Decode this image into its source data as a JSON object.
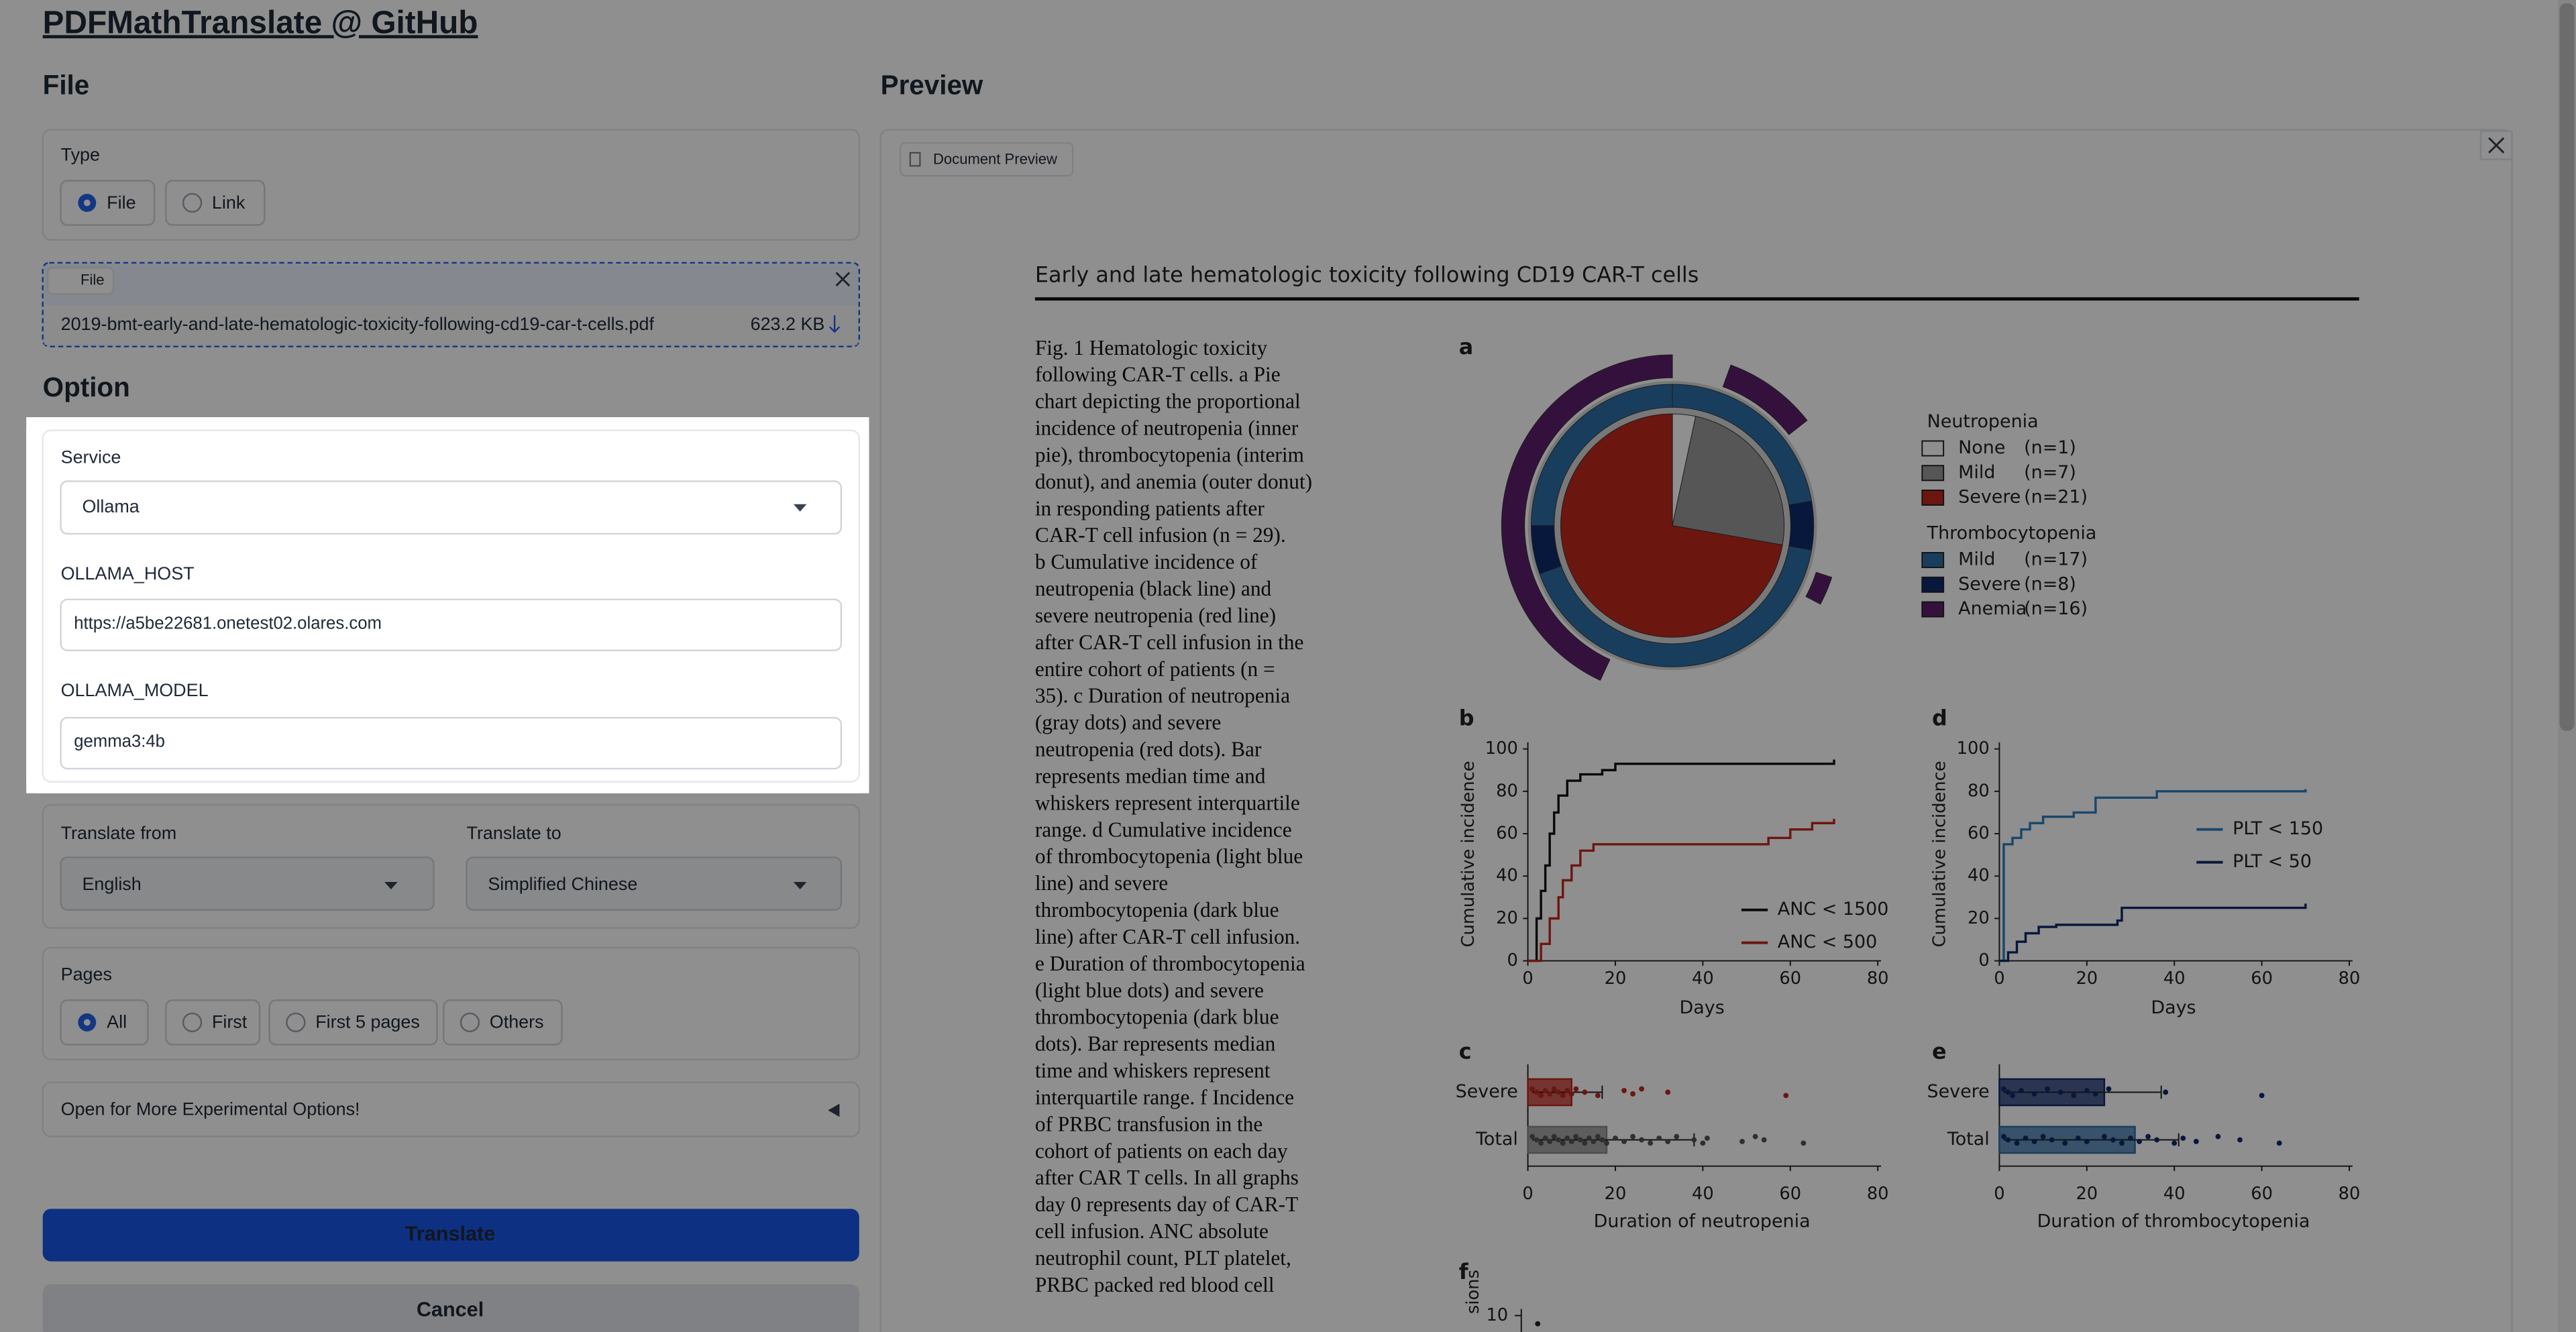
{
  "header": {
    "title": "PDFMathTranslate @ GitHub"
  },
  "file_section": {
    "heading": "File",
    "type_label": "Type",
    "type_options": [
      "File",
      "Link"
    ],
    "file_label": "File",
    "file_name": "2019-bmt-early-and-late-hematologic-toxicity-following-cd19-car-t-cells.pdf",
    "file_size": "623.2 KB"
  },
  "option_section": {
    "heading": "Option",
    "service_label": "Service",
    "service_value": "Ollama",
    "host_label": "OLLAMA_HOST",
    "host_value": "https://a5be22681.onetest02.olares.com",
    "model_label": "OLLAMA_MODEL",
    "model_value": "gemma3:4b",
    "from_label": "Translate from",
    "from_value": "English",
    "to_label": "Translate to",
    "to_value": "Simplified Chinese",
    "pages_label": "Pages",
    "pages_options": [
      "All",
      "First",
      "First 5 pages",
      "Others"
    ],
    "experimental": "Open for More Experimental Options!"
  },
  "buttons": {
    "translate": "Translate",
    "cancel": "Cancel"
  },
  "preview": {
    "heading": "Preview",
    "tab": "Document Preview",
    "document": {
      "title": "Early and late hematologic toxicity following CD19 CAR-T cells",
      "caption_lines": [
        "Fig. 1  Hematologic toxicity",
        "following CAR-T cells. a Pie",
        "chart depicting the proportional",
        "incidence of neutropenia (inner",
        "pie), thrombocytopenia (interim",
        "donut), and anemia (outer donut)",
        "in responding patients after",
        "CAR-T cell infusion (n = 29).",
        "b Cumulative incidence of",
        "neutropenia (black line) and",
        "severe neutropenia (red line)",
        "after CAR-T cell infusion in the",
        "entire cohort of patients (n =",
        "35). c Duration of neutropenia",
        "(gray dots) and severe",
        "neutropenia (red dots). Bar",
        "represents median time and",
        "whiskers represent interquartile",
        "range. d Cumulative incidence",
        "of thrombocytopenia (light blue",
        "line) and severe",
        "thrombocytopenia (dark blue",
        "line) after CAR-T cell infusion.",
        "e Duration of thrombocytopenia",
        "(light blue dots) and severe",
        "thrombocytopenia (dark blue",
        "dots). Bar represents median",
        "time and whiskers represent",
        "interquartile range. f Incidence",
        "of PRBC transfusion in the",
        "cohort of patients on each day",
        "after CAR T cells. In all graphs",
        "day 0 represents day of CAR-T",
        "cell infusion. ANC absolute",
        "neutrophil count, PLT platelet,",
        "PRBC packed red blood cell"
      ],
      "panel_letters": [
        "a",
        "b",
        "c",
        "d",
        "e",
        "f"
      ],
      "pie_legend": {
        "neutropenia_heading": "Neutropenia",
        "neutropenia": [
          {
            "label": "None",
            "count": "(n=1)",
            "color": "#ffffff"
          },
          {
            "label": "Mild",
            "count": "(n=7)",
            "color": "#9a9a9a"
          },
          {
            "label": "Severe",
            "count": "(n=21)",
            "color": "#c0281d"
          }
        ],
        "thrombocytopenia_heading": "Thrombocytopenia",
        "thrombocytopenia": [
          {
            "label": "Mild",
            "count": "(n=17)",
            "color": "#2e6fa7"
          },
          {
            "label": "Severe",
            "count": "(n=8)",
            "color": "#0f2a6b"
          },
          {
            "label": "Anemia",
            "count": "(n=16)",
            "color": "#5e1f6e"
          }
        ]
      },
      "chart_b": {
        "ylabel": "Cumulative incidence",
        "xlabel": "Days",
        "yticks": [
          0,
          20,
          40,
          60,
          80,
          100
        ],
        "xticks": [
          0,
          20,
          40,
          60,
          80
        ],
        "legend": [
          "ANC < 1500",
          "ANC < 500"
        ]
      },
      "chart_d": {
        "ylabel": "Cumulative incidence",
        "xlabel": "Days",
        "yticks": [
          0,
          20,
          40,
          60,
          80,
          100
        ],
        "xticks": [
          0,
          20,
          40,
          60,
          80
        ],
        "legend": [
          "PLT < 150",
          "PLT < 50"
        ]
      },
      "chart_c": {
        "categories": [
          "Severe",
          "Total"
        ],
        "xticks": [
          0,
          20,
          40,
          60,
          80
        ],
        "xlabel": "Duration of neutropenia"
      },
      "chart_e": {
        "categories": [
          "Severe",
          "Total"
        ],
        "xticks": [
          0,
          20,
          40,
          60,
          80
        ],
        "xlabel": "Duration of thrombocytopenia"
      },
      "chart_f": {
        "ytick": "10",
        "ylabel_fragment": "sions"
      }
    }
  }
}
